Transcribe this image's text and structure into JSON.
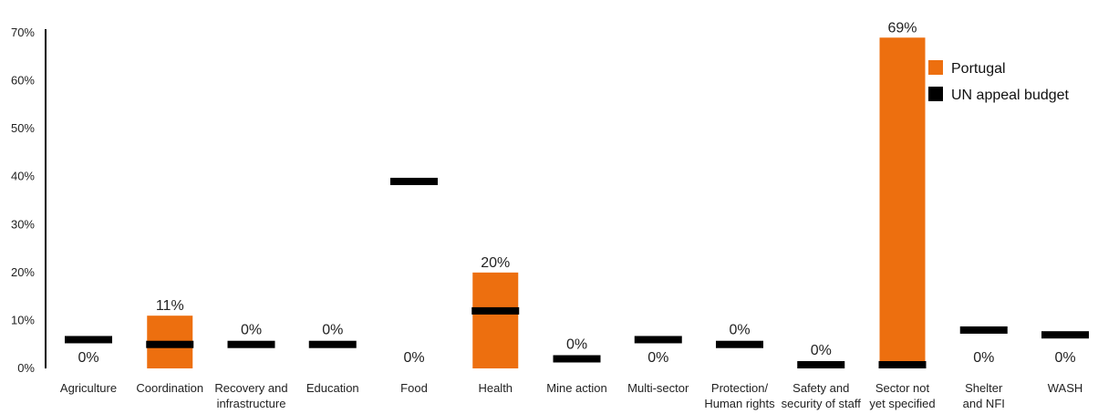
{
  "chart_data": {
    "type": "bar",
    "title": "",
    "xlabel": "",
    "ylabel": "",
    "ylim": [
      0,
      70
    ],
    "yticks": [
      0,
      10,
      20,
      30,
      40,
      50,
      60,
      70
    ],
    "ytick_labels": [
      "0%",
      "10%",
      "20%",
      "30%",
      "40%",
      "50%",
      "60%",
      "70%"
    ],
    "grid": false,
    "legend_position": "top-right",
    "categories": [
      [
        "Agriculture"
      ],
      [
        "Coordination"
      ],
      [
        "Recovery and",
        "infrastructure"
      ],
      [
        "Education"
      ],
      [
        "Food"
      ],
      [
        "Health"
      ],
      [
        "Mine action"
      ],
      [
        "Multi-sector"
      ],
      [
        "Protection/",
        "Human rights"
      ],
      [
        "Safety and",
        "security of staff"
      ],
      [
        "Sector not",
        "yet specified"
      ],
      [
        "Shelter",
        "and NFI"
      ],
      [
        "WASH"
      ]
    ],
    "series": [
      {
        "name": "Portugal",
        "type": "bar",
        "color": "#ed6f0f",
        "values": [
          0,
          11,
          0,
          0,
          0,
          20,
          0,
          0,
          0,
          0,
          69,
          0,
          0
        ],
        "labels": [
          "0%",
          "11%",
          "0%",
          "0%",
          "0%",
          "20%",
          "0%",
          "0%",
          "0%",
          "0%",
          "69%",
          "0%",
          "0%"
        ]
      },
      {
        "name": "UN appeal budget",
        "type": "marker",
        "color": "#000000",
        "values": [
          6,
          5,
          5,
          5,
          39,
          12,
          2,
          6,
          5,
          0,
          0,
          8,
          7
        ]
      }
    ]
  }
}
